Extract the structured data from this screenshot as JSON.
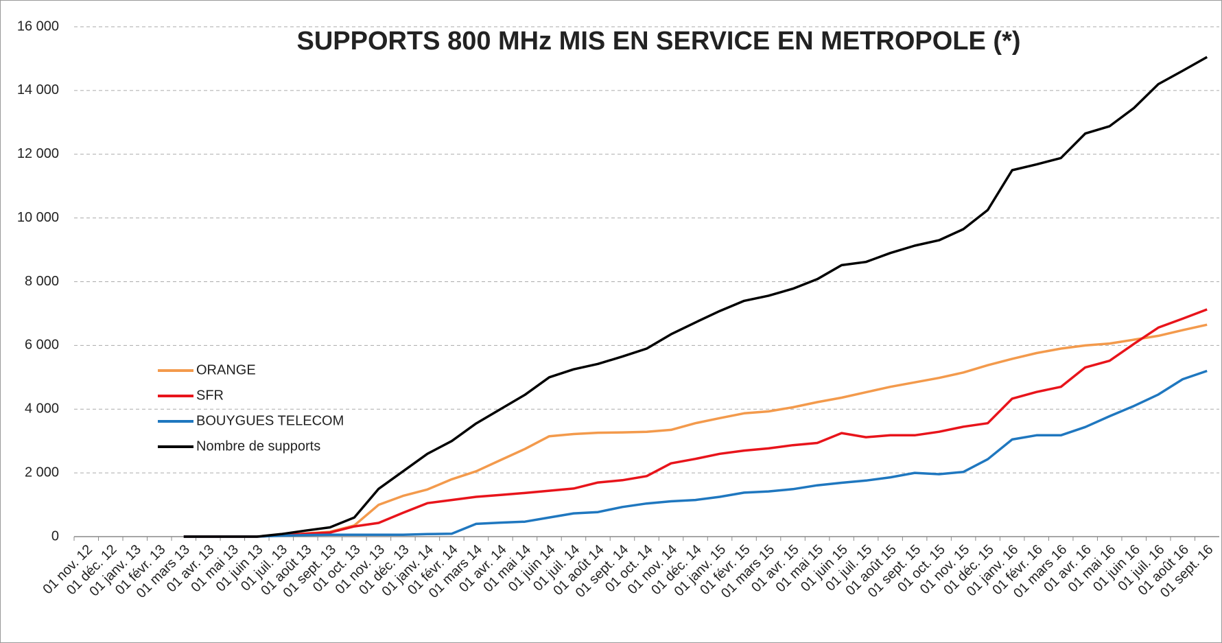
{
  "chart_data": {
    "type": "line",
    "title": "SUPPORTS 800 MHz MIS EN SERVICE EN METROPOLE (*)",
    "categories": [
      "01 nov. 12",
      "01 déc. 12",
      "01 janv. 13",
      "01 févr. 13",
      "01 mars 13",
      "01 avr. 13",
      "01 mai 13",
      "01 juin 13",
      "01 juil. 13",
      "01 août 13",
      "01 sept. 13",
      "01 oct. 13",
      "01 nov. 13",
      "01 déc. 13",
      "01 janv. 14",
      "01 févr. 14",
      "01 mars 14",
      "01 avr. 14",
      "01 mai 14",
      "01 juin 14",
      "01 juil. 14",
      "01 août 14",
      "01 sept. 14",
      "01 oct. 14",
      "01 nov. 14",
      "01 déc. 14",
      "01 janv. 15",
      "01 févr. 15",
      "01 mars 15",
      "01 avr. 15",
      "01 mai 15",
      "01 juin 15",
      "01 juil. 15",
      "01 août 15",
      "01 sept. 15",
      "01 oct. 15",
      "01 nov. 15",
      "01 déc. 15",
      "01 janv. 16",
      "01 févr. 16",
      "01 mars 16",
      "01 avr. 16",
      "01 mai 16",
      "01 juin 16",
      "01 juil. 16",
      "01 août 16",
      "01 sept. 16"
    ],
    "series": [
      {
        "name": "ORANGE",
        "color": "#f39a4c",
        "values": [
          null,
          null,
          null,
          null,
          0,
          0,
          0,
          0,
          40,
          100,
          150,
          350,
          1000,
          1280,
          1480,
          1800,
          2050,
          2400,
          2750,
          3150,
          3220,
          3260,
          3270,
          3290,
          3350,
          3560,
          3720,
          3870,
          3930,
          4060,
          4220,
          4360,
          4530,
          4700,
          4840,
          4980,
          5150,
          5380,
          5580,
          5760,
          5900,
          6000,
          6060,
          6180,
          6300,
          6480,
          6650
        ]
      },
      {
        "name": "SFR",
        "color": "#e8141b",
        "values": [
          null,
          null,
          null,
          null,
          0,
          0,
          0,
          0,
          40,
          90,
          130,
          320,
          430,
          750,
          1050,
          1150,
          1250,
          1310,
          1370,
          1440,
          1510,
          1700,
          1770,
          1900,
          2300,
          2440,
          2600,
          2700,
          2770,
          2870,
          2940,
          3250,
          3120,
          3180,
          3180,
          3290,
          3450,
          3560,
          4330,
          4540,
          4700,
          5310,
          5520,
          6050,
          6560,
          6840,
          7130
        ]
      },
      {
        "name": "BOUYGUES TELECOM",
        "color": "#1f77bf",
        "values": [
          null,
          null,
          null,
          null,
          0,
          0,
          0,
          0,
          30,
          50,
          60,
          60,
          60,
          60,
          80,
          90,
          400,
          440,
          470,
          600,
          730,
          770,
          930,
          1040,
          1110,
          1150,
          1250,
          1380,
          1420,
          1490,
          1610,
          1690,
          1760,
          1860,
          2000,
          1960,
          2030,
          2430,
          3050,
          3180,
          3180,
          3440,
          3780,
          4100,
          4460,
          4940,
          5200
        ]
      },
      {
        "name": "Nombre de supports",
        "color": "#000000",
        "values": [
          null,
          null,
          null,
          null,
          0,
          0,
          0,
          0,
          80,
          190,
          290,
          600,
          1500,
          2050,
          2600,
          3000,
          3550,
          4000,
          4450,
          5000,
          5250,
          5420,
          5650,
          5900,
          6350,
          6720,
          7080,
          7400,
          7560,
          7780,
          8080,
          8520,
          8620,
          8900,
          9130,
          9300,
          9650,
          10250,
          11500,
          11680,
          11880,
          12650,
          12880,
          13450,
          14200,
          14620,
          15050
        ]
      }
    ],
    "ylim": [
      0,
      16000
    ],
    "yticks": [
      0,
      {
        "value": 2000,
        "label": "2 000"
      },
      {
        "value": 4000,
        "label": "4 000"
      },
      {
        "value": 6000,
        "label": "6 000"
      },
      {
        "value": 8000,
        "label": "8 000"
      },
      {
        "value": 10000,
        "label": "10 000"
      },
      {
        "value": 12000,
        "label": "12 000"
      },
      {
        "value": 14000,
        "label": "14 000"
      },
      {
        "value": 16000,
        "label": "16 000"
      }
    ],
    "grid": true
  }
}
